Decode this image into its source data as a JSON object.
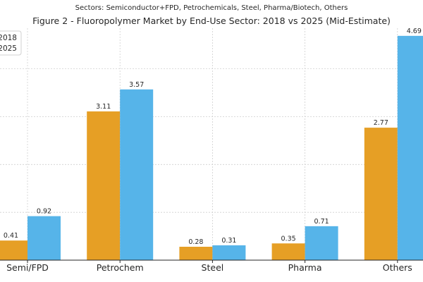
{
  "figure": {
    "suptitle": "Sectors: Semiconductor+FPD, Petrochemicals, Steel, Pharma/Biotech, Others",
    "title": "Figure 2 - Fluoropolymer Market by End-Use Sector: 2018 vs 2025 (Mid-Estimate)"
  },
  "chart_data": {
    "type": "bar",
    "title": "Figure 2 - Fluoropolymer Market by End-Use Sector: 2018 vs 2025 (Mid-Estimate)",
    "subtitle": "Sectors: Semiconductor+FPD, Petrochemicals, Steel, Pharma/Biotech, Others",
    "categories": [
      "Semi/FPD",
      "Petrochem",
      "Steel",
      "Pharma",
      "Others"
    ],
    "series": [
      {
        "name": "2018",
        "values": [
          0.41,
          3.11,
          0.28,
          0.35,
          2.77
        ],
        "color": "#E69F25"
      },
      {
        "name": "2025",
        "values": [
          0.92,
          3.57,
          0.31,
          0.71,
          4.69
        ],
        "color": "#56B4E9"
      }
    ],
    "value_labels": [
      [
        "0.41",
        "3.11",
        "0.28",
        "0.35",
        "2.77"
      ],
      [
        "0.92",
        "3.57",
        "0.31",
        "0.71",
        "4.69"
      ]
    ],
    "xlabel": "",
    "ylabel": "",
    "ylim": [
      0,
      4.85
    ],
    "grid": true,
    "legend_position": "top-left"
  }
}
